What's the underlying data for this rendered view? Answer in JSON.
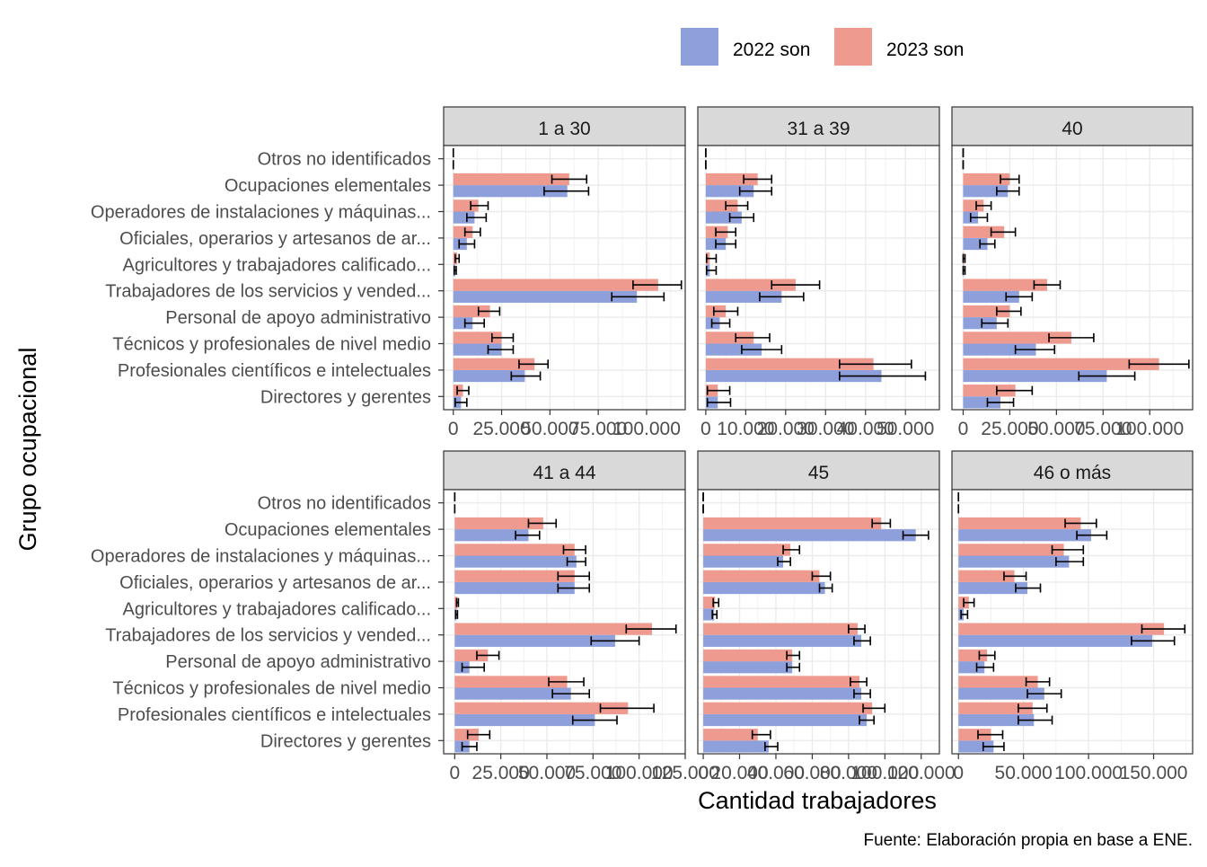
{
  "chart_data": {
    "type": "bar",
    "orientation": "horizontal",
    "grouping": "dodge",
    "error_bars": true,
    "grid": true,
    "legend_position": "top",
    "xlabel": "Cantidad trabajadores",
    "ylabel": "Grupo ocupacional",
    "caption": "Fuente: Elaboración propia en base a ENE.",
    "categories": [
      "Otros no identificados",
      "Ocupaciones elementales",
      "Operadores de instalaciones y máquinas...",
      "Oficiales, operarios y artesanos de ar...",
      "Agricultores y trabajadores calificado...",
      "Trabajadores de los servicios y vended...",
      "Personal de apoyo administrativo",
      "Técnicos y profesionales de nivel medio",
      "Profesionales científicos e intelectuales",
      "Directores y gerentes"
    ],
    "series_meta": [
      {
        "name": "2022 son",
        "color": "#8DA0DB"
      },
      {
        "name": "2023 son",
        "color": "#EF9A8E"
      }
    ],
    "panels": [
      {
        "title": "1 a 30",
        "xlim": [
          -5000,
          120000
        ],
        "ticks": [
          0,
          25000,
          50000,
          75000,
          100000
        ],
        "tick_labels": [
          "0",
          "25.000",
          "50.000",
          "75.000",
          "100.000"
        ],
        "series": [
          {
            "name": "2022 son",
            "values": [
              0,
              59000,
              11000,
              7000,
              1000,
              95000,
              10000,
              25000,
              37000,
              4000
            ],
            "err_low": [
              0,
              47000,
              7000,
              3000,
              500,
              82000,
              6000,
              18000,
              30000,
              1000
            ],
            "err_high": [
              0,
              70000,
              17000,
              11000,
              1500,
              109000,
              16000,
              31000,
              45000,
              7000
            ]
          },
          {
            "name": "2023 son",
            "values": [
              0,
              60000,
              13000,
              10000,
              2000,
              106000,
              19000,
              25000,
              42000,
              5000
            ],
            "err_low": [
              0,
              51000,
              9000,
              6000,
              1000,
              93000,
              13000,
              20000,
              34000,
              2000
            ],
            "err_high": [
              0,
              69000,
              18000,
              14000,
              3000,
              118000,
              24000,
              31000,
              49000,
              8000
            ]
          }
        ]
      },
      {
        "title": "31 a 39",
        "xlim": [
          -2000,
          58500
        ],
        "ticks": [
          0,
          10000,
          20000,
          30000,
          40000,
          50000
        ],
        "tick_labels": [
          "0",
          "10.000",
          "20.000",
          "30.000",
          "40.000",
          "50.000"
        ],
        "series": [
          {
            "name": "2022 son",
            "values": [
              0,
              12000,
              9000,
              5000,
              1000,
              19000,
              3500,
              14000,
              44000,
              3000
            ],
            "err_low": [
              0,
              8500,
              6000,
              2500,
              200,
              13500,
              1500,
              9000,
              33500,
              400
            ],
            "err_high": [
              0,
              16500,
              12000,
              7500,
              2600,
              24500,
              6000,
              19000,
              55000,
              6200
            ]
          },
          {
            "name": "2023 son",
            "values": [
              0,
              13000,
              8000,
              5500,
              1000,
              22500,
              5000,
              12000,
              42000,
              3000
            ],
            "err_low": [
              0,
              9500,
              5000,
              2500,
              200,
              16500,
              2000,
              7500,
              33500,
              400
            ],
            "err_high": [
              0,
              16500,
              10500,
              7500,
              2600,
              28500,
              8000,
              16000,
              51500,
              6000
            ]
          }
        ]
      },
      {
        "title": "40",
        "xlim": [
          -6000,
          123000
        ],
        "ticks": [
          0,
          25000,
          50000,
          75000,
          100000
        ],
        "tick_labels": [
          "0",
          "25.000",
          "50.000",
          "75.000",
          "100.000"
        ],
        "series": [
          {
            "name": "2022 son",
            "values": [
              0,
              24000,
              8000,
              13000,
              500,
              30000,
              18000,
              39000,
              77000,
              20000
            ],
            "err_low": [
              0,
              18000,
              4000,
              9000,
              0,
              23000,
              10000,
              28000,
              62000,
              13000
            ],
            "err_high": [
              0,
              30000,
              13000,
              17000,
              1000,
              37000,
              24000,
              49000,
              92000,
              27000
            ]
          },
          {
            "name": "2023 son",
            "values": [
              0,
              25000,
              11000,
              22000,
              500,
              45000,
              25000,
              58000,
              105000,
              28000
            ],
            "err_low": [
              0,
              20000,
              7000,
              15000,
              0,
              38000,
              18000,
              46000,
              89000,
              18000
            ],
            "err_high": [
              0,
              30000,
              15000,
              28000,
              1000,
              52000,
              31000,
              70000,
              121000,
              37000
            ]
          }
        ]
      },
      {
        "title": "41 a 44",
        "xlim": [
          -6000,
          125000
        ],
        "ticks": [
          0,
          25000,
          50000,
          75000,
          100000,
          125000
        ],
        "tick_labels": [
          "0",
          "25.000",
          "50.000",
          "75.000",
          "100.000",
          "125.000"
        ],
        "series": [
          {
            "name": "2022 son",
            "values": [
              0,
              40000,
              66000,
              65000,
              1000,
              87000,
              8000,
              63000,
              76000,
              8000
            ],
            "err_low": [
              0,
              33000,
              61000,
              56000,
              500,
              74000,
              4000,
              53000,
              64000,
              4000
            ],
            "err_high": [
              0,
              46000,
              71000,
              73000,
              1500,
              100000,
              16000,
              73000,
              88000,
              12000
            ]
          },
          {
            "name": "2023 son",
            "values": [
              0,
              48000,
              65000,
              65000,
              1500,
              107000,
              18000,
              61000,
              94000,
              13000
            ],
            "err_low": [
              0,
              40000,
              59000,
              56000,
              1000,
              93000,
              12000,
              51000,
              79000,
              7000
            ],
            "err_high": [
              0,
              55000,
              71000,
              73000,
              2000,
              120000,
              24000,
              70000,
              108000,
              19000
            ]
          }
        ]
      },
      {
        "title": "45",
        "xlim": [
          -3000,
          130000
        ],
        "ticks": [
          0,
          20000,
          40000,
          60000,
          80000,
          100000,
          120000
        ],
        "tick_labels": [
          "0",
          "20.000",
          "40.000",
          "60.000",
          "80.000",
          "100.000",
          "120.000"
        ],
        "series": [
          {
            "name": "2022 son",
            "values": [
              0,
              117000,
              44000,
              67000,
              6000,
              87000,
              49000,
              87000,
              90000,
              36000
            ],
            "err_low": [
              0,
              110000,
              41000,
              64000,
              5000,
              83000,
              46000,
              83000,
              86000,
              34000
            ],
            "err_high": [
              0,
              124000,
              48000,
              71000,
              7500,
              92000,
              53000,
              92000,
              94000,
              41000
            ]
          },
          {
            "name": "2023 son",
            "values": [
              0,
              98000,
              48000,
              64000,
              6500,
              85000,
              49000,
              86000,
              93000,
              30000
            ],
            "err_low": [
              0,
              93000,
              44000,
              60000,
              5500,
              80000,
              46000,
              81000,
              88000,
              27000
            ],
            "err_high": [
              0,
              103000,
              53000,
              70000,
              8500,
              89000,
              53000,
              90000,
              100000,
              37000
            ]
          }
        ]
      },
      {
        "title": "46 o más",
        "xlim": [
          -5000,
          180000
        ],
        "ticks": [
          0,
          50000,
          100000,
          150000
        ],
        "tick_labels": [
          "0",
          "50.000",
          "100.000",
          "150.000"
        ],
        "series": [
          {
            "name": "2022 son",
            "values": [
              0,
              102000,
              85000,
              53000,
              4000,
              149000,
              20000,
              66000,
              58000,
              27000
            ],
            "err_low": [
              0,
              91000,
              75000,
              44000,
              2000,
              133000,
              14000,
              53000,
              46000,
              19000
            ],
            "err_high": [
              0,
              114000,
              96000,
              63000,
              7000,
              166000,
              27000,
              79000,
              72000,
              35000
            ]
          },
          {
            "name": "2023 son",
            "values": [
              0,
              94000,
              81000,
              43000,
              8000,
              158000,
              22000,
              61000,
              57000,
              25000
            ],
            "err_low": [
              0,
              82000,
              72000,
              35000,
              4000,
              141000,
              16000,
              52000,
              46000,
              15000
            ],
            "err_high": [
              0,
              106000,
              96000,
              52000,
              12000,
              174000,
              28000,
              70000,
              68000,
              34000
            ]
          }
        ]
      }
    ]
  }
}
